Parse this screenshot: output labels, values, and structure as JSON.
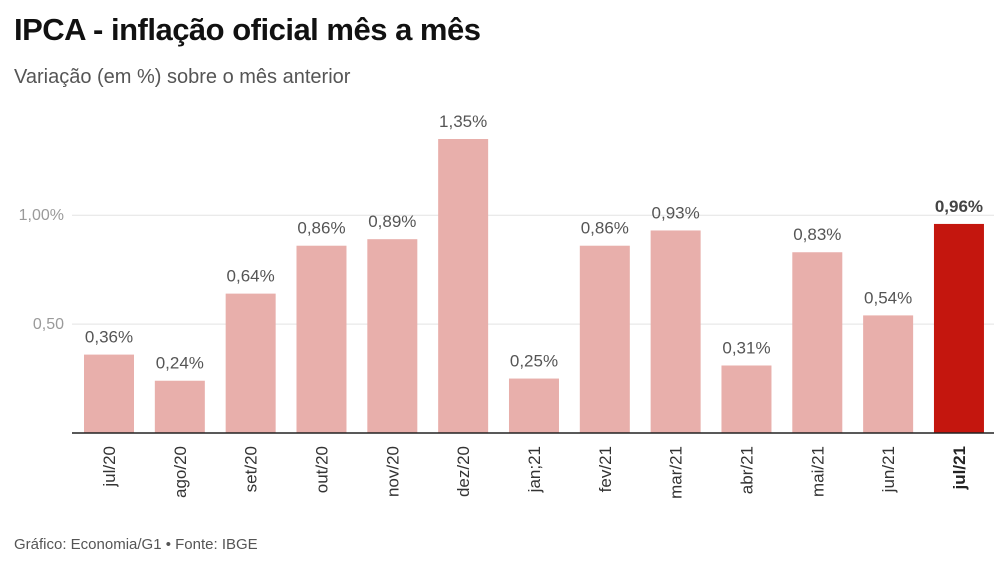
{
  "header": {
    "title": "IPCA - inflação oficial mês a mês",
    "subtitle": "Variação (em %) sobre o mês anterior"
  },
  "footer": {
    "source": "Gráfico: Economia/G1 • Fonte: IBGE"
  },
  "colors": {
    "bar": "#e8afab",
    "highlight": "#c4160e",
    "grid": "#e3e3e3",
    "axis": "#222222"
  },
  "chart_data": {
    "type": "bar",
    "categories": [
      "jul/20",
      "ago/20",
      "set/20",
      "out/20",
      "nov/20",
      "dez/20",
      "jan;21",
      "fev/21",
      "mar/21",
      "abr/21",
      "mai/21",
      "jun/21",
      "jul/21"
    ],
    "values": [
      0.36,
      0.24,
      0.64,
      0.86,
      0.89,
      1.35,
      0.25,
      0.86,
      0.93,
      0.31,
      0.83,
      0.54,
      0.96
    ],
    "value_labels": [
      "0,36%",
      "0,24%",
      "0,64%",
      "0,86%",
      "0,89%",
      "1,35%",
      "0,25%",
      "0,86%",
      "0,93%",
      "0,31%",
      "0,83%",
      "0,54%",
      "0,96%"
    ],
    "highlight_index": 12,
    "y_ticks": [
      {
        "value": 0.5,
        "label": "0,50"
      },
      {
        "value": 1.0,
        "label": "1,00%"
      }
    ],
    "ylim": [
      0,
      1.35
    ],
    "grid": true,
    "legend": "none"
  }
}
